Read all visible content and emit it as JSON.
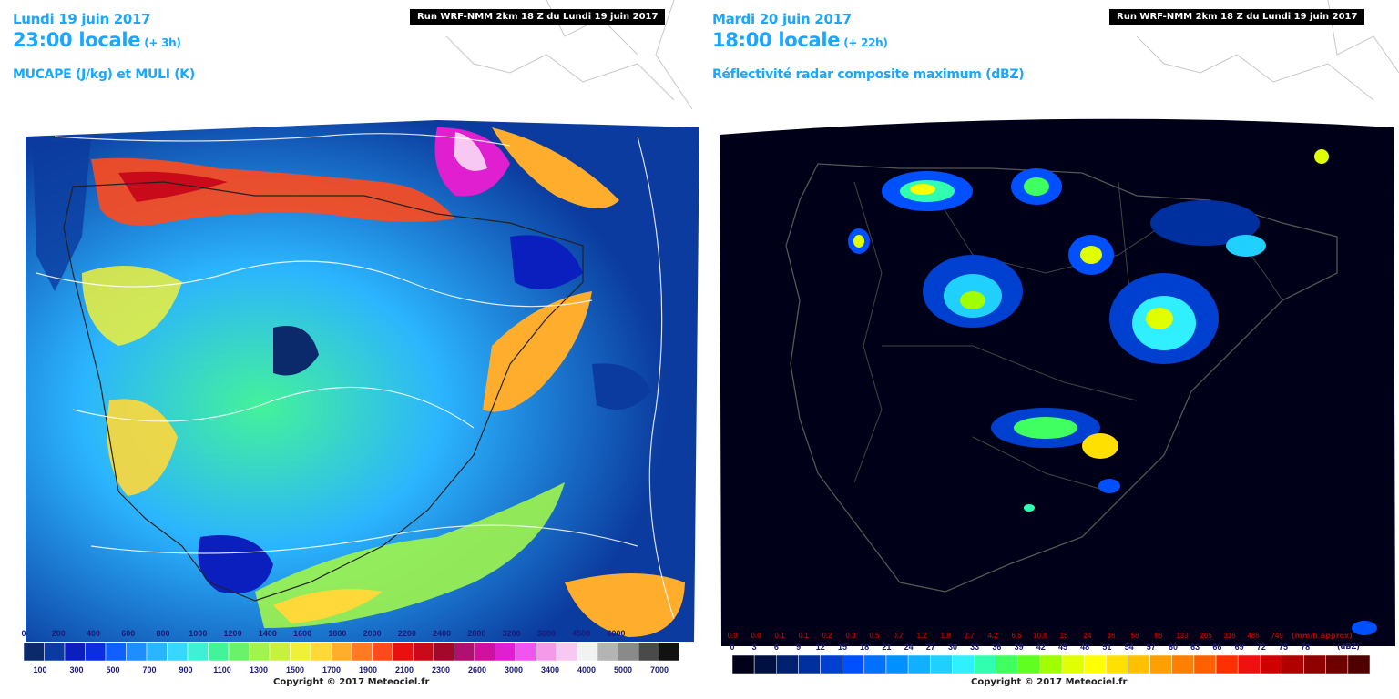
{
  "left_panel": {
    "date": "Lundi 19 juin 2017",
    "hour": "23:00 locale",
    "lead": "(+ 3h)",
    "product": "MUCAPE (J/kg) et MULI (K)",
    "run": "Run WRF-NMM 2km 18 Z du Lundi 19 juin 2017",
    "copyright": "Copyright © 2017 Meteociel.fr",
    "scale_top": [
      "0",
      "200",
      "400",
      "600",
      "800",
      "1000",
      "1200",
      "1400",
      "1600",
      "1800",
      "2000",
      "2200",
      "2400",
      "2800",
      "3200",
      "3600",
      "4500",
      "6000"
    ],
    "scale_bottom": [
      "100",
      "300",
      "500",
      "700",
      "900",
      "1100",
      "1300",
      "1500",
      "1700",
      "1900",
      "2100",
      "2300",
      "2600",
      "3000",
      "3400",
      "4000",
      "5000",
      "7000"
    ],
    "colors": [
      "#0a2a6b",
      "#0b3b9e",
      "#0b1fbf",
      "#0a2ee0",
      "#1060ff",
      "#1f8cff",
      "#2bb4ff",
      "#39d6ff",
      "#3ff0d6",
      "#44f29a",
      "#6cf26a",
      "#9ff54d",
      "#c6f23f",
      "#eef03a",
      "#ffd83a",
      "#ffad2c",
      "#ff7a23",
      "#ff4a1c",
      "#ea1010",
      "#c80a1a",
      "#a3082a",
      "#b01070",
      "#d0109e",
      "#e020d0",
      "#f055f0",
      "#f59ae8",
      "#f7c8f2",
      "#f2f2f2",
      "#b4b4b4",
      "#8a8a8a",
      "#4a4a4a",
      "#111111"
    ]
  },
  "right_panel": {
    "date": "Mardi 20 juin 2017",
    "hour": "18:00 locale",
    "lead": "(+ 22h)",
    "product": "Réflectivité radar composite maximum (dBZ)",
    "run": "Run WRF-NMM 2km 18 Z du Lundi 19 juin 2017",
    "copyright": "Copyright © 2017 Meteociel.fr",
    "rate_labels": [
      "0.0",
      "0.0",
      "0.1",
      "0.1",
      "0.2",
      "0.3",
      "0.5",
      "0.7",
      "1.2",
      "1.8",
      "2.7",
      "4.2",
      "6.5",
      "10.0",
      "15",
      "24",
      "36",
      "56",
      "86",
      "133",
      "205",
      "316",
      "486",
      "749"
    ],
    "rate_unit": "(mm/h approx)",
    "dbz_labels": [
      "0",
      "3",
      "6",
      "9",
      "12",
      "15",
      "18",
      "21",
      "24",
      "27",
      "30",
      "33",
      "36",
      "39",
      "42",
      "45",
      "48",
      "51",
      "54",
      "57",
      "60",
      "63",
      "66",
      "69",
      "72",
      "75",
      "78"
    ],
    "dbz_unit": "(dBZ)",
    "colors": [
      "#000018",
      "#001040",
      "#002070",
      "#0030a0",
      "#0040d0",
      "#0050ff",
      "#0070ff",
      "#0090ff",
      "#10b0ff",
      "#20d0ff",
      "#30f0ff",
      "#30ffb0",
      "#40ff60",
      "#60ff20",
      "#a0ff00",
      "#e0ff00",
      "#ffff00",
      "#ffe000",
      "#ffc000",
      "#ffa000",
      "#ff8000",
      "#ff6000",
      "#ff3000",
      "#f01010",
      "#d00000",
      "#b00000",
      "#900000",
      "#700000",
      "#500000"
    ]
  }
}
